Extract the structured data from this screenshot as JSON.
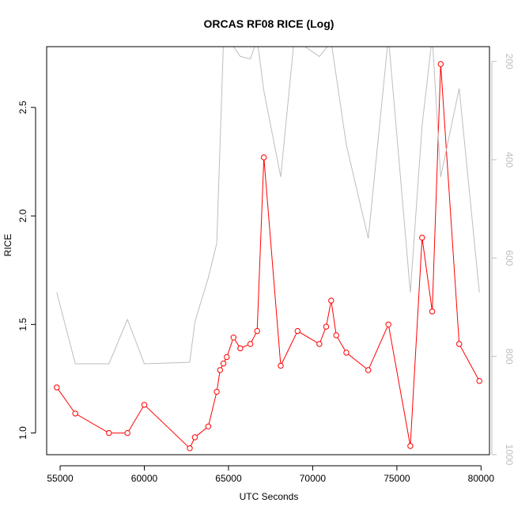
{
  "chart_data": {
    "type": "line",
    "title": "ORCAS RF08 RICE (Log)",
    "xlabel": "UTC Seconds",
    "ylabel": "RICE",
    "y2label": "",
    "xlim": [
      54200,
      80500
    ],
    "ylim": [
      0.9,
      2.78
    ],
    "y2lim_reversed": [
      1000,
      170
    ],
    "x_ticks": [
      55000,
      60000,
      65000,
      70000,
      75000,
      80000
    ],
    "x_tick_labels": [
      "55000",
      "60000",
      "65000",
      "70000",
      "75000",
      "80000"
    ],
    "y_ticks": [
      1.0,
      1.5,
      2.0,
      2.5
    ],
    "y_tick_labels": [
      "1.0",
      "1.5",
      "2.0",
      "2.5"
    ],
    "y2_ticks": [
      200,
      400,
      600,
      800,
      1000
    ],
    "y2_tick_labels": [
      "200",
      "400",
      "600",
      "800",
      "1000"
    ],
    "grid": false,
    "series": [
      {
        "color": "#ff0000",
        "axis": "left",
        "markers": true,
        "x": [
          54800,
          55900,
          57900,
          59000,
          60000,
          62700,
          63000,
          63800,
          64300,
          64500,
          64700,
          64900,
          65300,
          65700,
          66300,
          66700,
          67100,
          68100,
          69100,
          70400,
          70800,
          71100,
          71400,
          72000,
          73300,
          74500,
          75800,
          76500,
          77100,
          77600,
          78700,
          79900
        ],
        "y": [
          1.21,
          1.09,
          1.0,
          1.0,
          1.13,
          0.93,
          0.98,
          1.03,
          1.19,
          1.29,
          1.32,
          1.35,
          1.44,
          1.39,
          1.41,
          1.47,
          2.27,
          1.31,
          1.47,
          1.41,
          1.49,
          1.61,
          1.45,
          1.37,
          1.29,
          1.5,
          0.94,
          1.9,
          1.56,
          2.7,
          1.41,
          1.24
        ]
      },
      {
        "color": "#bebebe",
        "axis": "right",
        "markers": false,
        "x": [
          54800,
          55900,
          57900,
          59000,
          60000,
          62700,
          63000,
          63800,
          64300,
          64700,
          65100,
          65700,
          66300,
          66700,
          67100,
          68100,
          68900,
          70400,
          71100,
          72000,
          73300,
          74500,
          75800,
          76500,
          77100,
          77600,
          78700,
          79900
        ],
        "y": [
          670,
          815,
          815,
          725,
          815,
          812,
          730,
          640,
          570,
          160,
          160,
          190,
          195,
          155,
          260,
          435,
          155,
          190,
          160,
          370,
          560,
          150,
          670,
          330,
          150,
          435,
          255,
          670
        ]
      }
    ]
  }
}
